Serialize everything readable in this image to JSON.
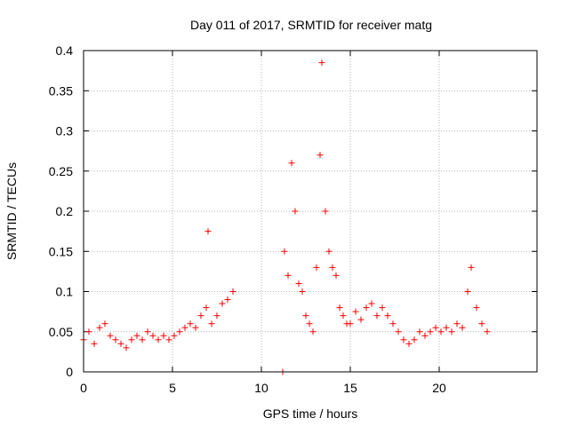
{
  "chart_data": {
    "type": "scatter",
    "title": "Day 011 of 2017, SRMTID for receiver matg",
    "xlabel": "GPS time / hours",
    "ylabel": "SRMTID / TECUs",
    "xlim": [
      0,
      25.5
    ],
    "ylim": [
      0,
      0.4
    ],
    "x_ticks": [
      0,
      5,
      10,
      15,
      20
    ],
    "x_tick_labels": [
      "0",
      "5",
      "10",
      "15",
      "20"
    ],
    "y_ticks": [
      0,
      0.05,
      0.1,
      0.15,
      0.2,
      0.25,
      0.3,
      0.35,
      0.4
    ],
    "y_tick_labels": [
      "0",
      "0.05",
      "0.1",
      "0.15",
      "0.2",
      "0.25",
      "0.3",
      "0.35",
      "0.4"
    ],
    "grid": true,
    "marker": "+",
    "color": "#ff0000",
    "series": [
      {
        "name": "SRMTID",
        "points": [
          [
            0.0,
            0.04
          ],
          [
            0.3,
            0.05
          ],
          [
            0.6,
            0.035
          ],
          [
            0.9,
            0.055
          ],
          [
            1.2,
            0.06
          ],
          [
            1.5,
            0.045
          ],
          [
            1.8,
            0.04
          ],
          [
            2.1,
            0.035
          ],
          [
            2.4,
            0.03
          ],
          [
            2.7,
            0.04
          ],
          [
            3.0,
            0.045
          ],
          [
            3.3,
            0.04
          ],
          [
            3.6,
            0.05
          ],
          [
            3.9,
            0.045
          ],
          [
            4.2,
            0.04
          ],
          [
            4.5,
            0.045
          ],
          [
            4.8,
            0.04
          ],
          [
            5.1,
            0.045
          ],
          [
            5.4,
            0.05
          ],
          [
            5.7,
            0.055
          ],
          [
            6.0,
            0.06
          ],
          [
            6.3,
            0.055
          ],
          [
            6.6,
            0.07
          ],
          [
            6.9,
            0.08
          ],
          [
            7.0,
            0.175
          ],
          [
            7.2,
            0.06
          ],
          [
            7.5,
            0.07
          ],
          [
            7.8,
            0.085
          ],
          [
            8.1,
            0.09
          ],
          [
            8.4,
            0.1
          ],
          [
            11.2,
            0.0
          ],
          [
            11.3,
            0.15
          ],
          [
            11.5,
            0.12
          ],
          [
            11.7,
            0.26
          ],
          [
            11.9,
            0.2
          ],
          [
            12.1,
            0.11
          ],
          [
            12.3,
            0.1
          ],
          [
            12.5,
            0.07
          ],
          [
            12.7,
            0.06
          ],
          [
            12.9,
            0.05
          ],
          [
            13.1,
            0.13
          ],
          [
            13.3,
            0.27
          ],
          [
            13.4,
            0.385
          ],
          [
            13.6,
            0.2
          ],
          [
            13.8,
            0.15
          ],
          [
            14.0,
            0.13
          ],
          [
            14.2,
            0.12
          ],
          [
            14.4,
            0.08
          ],
          [
            14.6,
            0.07
          ],
          [
            14.8,
            0.06
          ],
          [
            15.0,
            0.06
          ],
          [
            15.3,
            0.075
          ],
          [
            15.6,
            0.065
          ],
          [
            15.9,
            0.08
          ],
          [
            16.2,
            0.085
          ],
          [
            16.5,
            0.07
          ],
          [
            16.8,
            0.08
          ],
          [
            17.1,
            0.07
          ],
          [
            17.4,
            0.06
          ],
          [
            17.7,
            0.05
          ],
          [
            18.0,
            0.04
          ],
          [
            18.3,
            0.035
          ],
          [
            18.6,
            0.04
          ],
          [
            18.9,
            0.05
          ],
          [
            19.2,
            0.045
          ],
          [
            19.5,
            0.05
          ],
          [
            19.8,
            0.055
          ],
          [
            20.1,
            0.05
          ],
          [
            20.4,
            0.055
          ],
          [
            20.7,
            0.05
          ],
          [
            21.0,
            0.06
          ],
          [
            21.3,
            0.055
          ],
          [
            21.6,
            0.1
          ],
          [
            21.8,
            0.13
          ],
          [
            22.1,
            0.08
          ],
          [
            22.4,
            0.06
          ],
          [
            22.7,
            0.05
          ]
        ]
      }
    ]
  }
}
